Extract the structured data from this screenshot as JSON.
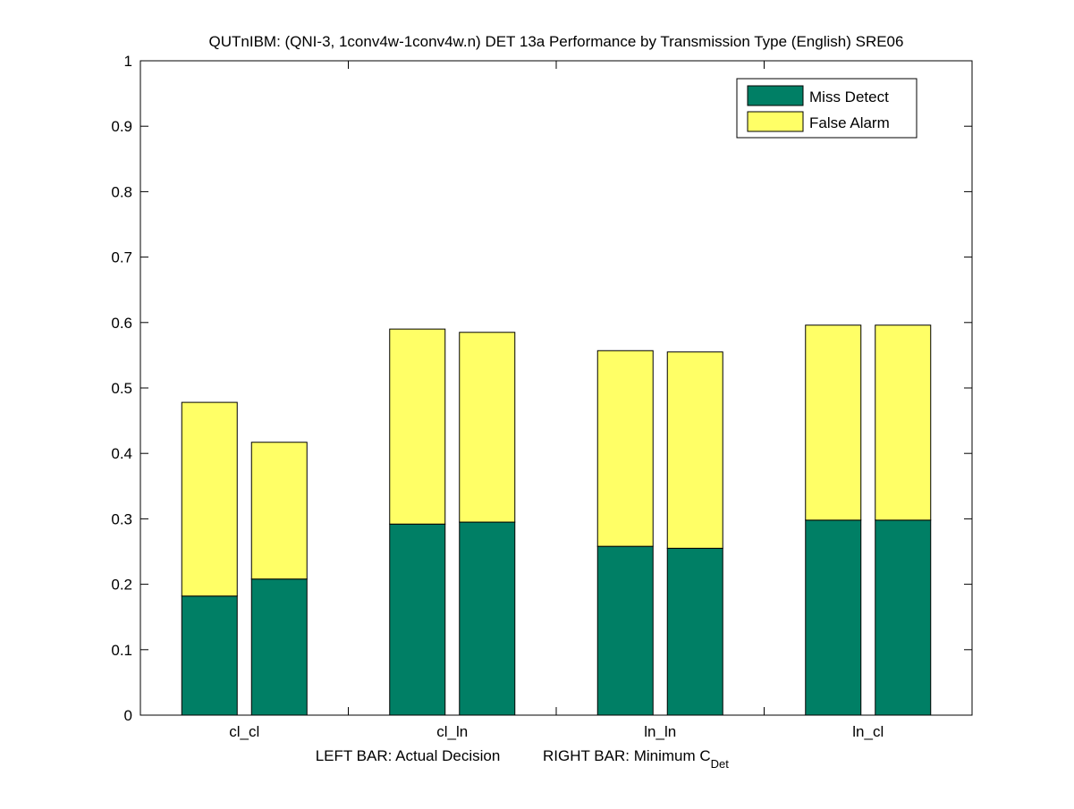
{
  "chart_data": {
    "type": "bar",
    "stacked": true,
    "title": "QUTnIBM: (QNI-3, 1conv4w-1conv4w.n) DET 13a Performance by Transmission Type (English) SRE06",
    "xlabel_left": "LEFT BAR: Actual Decision",
    "xlabel_right": "RIGHT BAR: Minimum C",
    "xlabel_right_sub": "Det",
    "categories": [
      "cl_cl",
      "cl_ln",
      "ln_ln",
      "ln_cl"
    ],
    "bars_per_category": [
      "Actual Decision",
      "Minimum C_Det"
    ],
    "ylim": [
      0,
      1
    ],
    "yticks": [
      "0",
      "0.1",
      "0.2",
      "0.3",
      "0.4",
      "0.5",
      "0.6",
      "0.7",
      "0.8",
      "0.9",
      "1"
    ],
    "legend_position": "top-right",
    "series": [
      {
        "name": "Miss Detect",
        "color": "#007f65",
        "values": [
          [
            0.182,
            0.208
          ],
          [
            0.292,
            0.295
          ],
          [
            0.258,
            0.255
          ],
          [
            0.298,
            0.298
          ]
        ]
      },
      {
        "name": "False Alarm",
        "color": "#ffff66",
        "values": [
          [
            0.296,
            0.209
          ],
          [
            0.298,
            0.29
          ],
          [
            0.299,
            0.3
          ],
          [
            0.298,
            0.298
          ]
        ]
      }
    ]
  }
}
